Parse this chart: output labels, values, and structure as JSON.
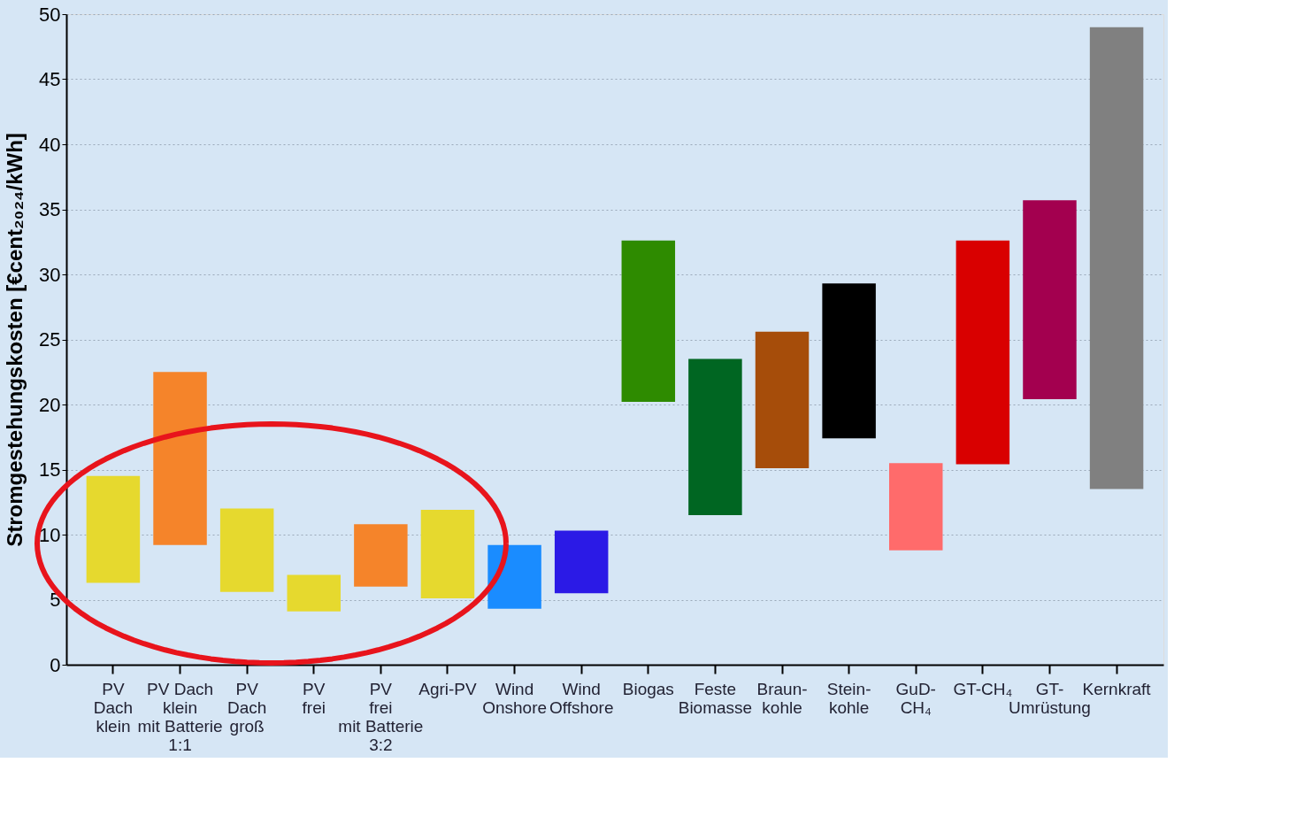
{
  "chart_data": {
    "type": "bar",
    "ylabel": "Stromgestehungskosten [€cent₂₀₂₄/kWh]",
    "categories": [
      "PV\nDach\nklein",
      "PV Dach\nklein\nmit Batterie\n1:1",
      "PV\nDach\ngroß",
      "PV\nfrei",
      "PV\nfrei\nmit Batterie\n3:2",
      "Agri-PV",
      "Wind\nOnshore",
      "Wind\nOffshore",
      "Biogas",
      "Feste\nBiomasse",
      "Braun-\nkohle",
      "Stein-\nkohle",
      "GuD-\nCH₄",
      "GT-CH₄",
      "GT-\nUmrüstung",
      "Kernkraft"
    ],
    "base": [
      6.3,
      9.2,
      5.6,
      4.1,
      6.0,
      5.1,
      4.3,
      5.5,
      20.2,
      11.5,
      15.1,
      17.4,
      8.8,
      15.4,
      20.4,
      13.5
    ],
    "values": [
      8.2,
      13.3,
      6.4,
      2.8,
      4.8,
      6.8,
      4.9,
      4.8,
      12.4,
      12.0,
      10.5,
      11.9,
      6.7,
      17.2,
      15.3,
      35.5
    ],
    "colors": [
      "#e6d92e",
      "#f5842a",
      "#e6d92e",
      "#e6d92e",
      "#f5842a",
      "#e6d92e",
      "#1a8cff",
      "#2b1ae6",
      "#2e8b00",
      "#006622",
      "#a64d0a",
      "#000000",
      "#ff6b6b",
      "#d90000",
      "#a3004f",
      "#808080"
    ],
    "ylim": [
      0,
      50
    ],
    "yticks": [
      0,
      5,
      10,
      15,
      20,
      25,
      30,
      35,
      40,
      45,
      50
    ],
    "grid": "y"
  }
}
